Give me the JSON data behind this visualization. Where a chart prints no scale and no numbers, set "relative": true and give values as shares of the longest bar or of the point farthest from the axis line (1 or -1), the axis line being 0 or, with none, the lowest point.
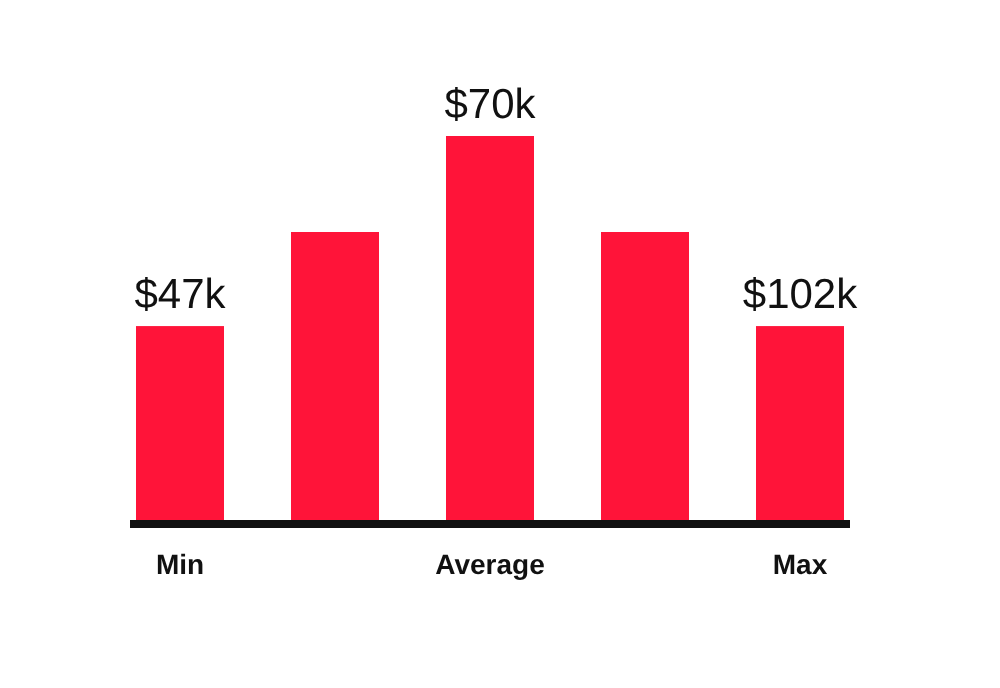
{
  "chart_data": {
    "type": "bar",
    "relative": true,
    "categories": [
      "Min",
      null,
      "Average",
      null,
      "Max"
    ],
    "values": [
      0.505,
      0.75,
      1,
      0.75,
      0.505
    ],
    "annotations": [
      {
        "text": "$47k",
        "x": "Min",
        "y": 0.505
      },
      {
        "text": "$70k",
        "x": "Average",
        "y": 1
      },
      {
        "text": "$102k",
        "x": "Max",
        "y": 0.505
      }
    ],
    "color": "#ff1439"
  }
}
